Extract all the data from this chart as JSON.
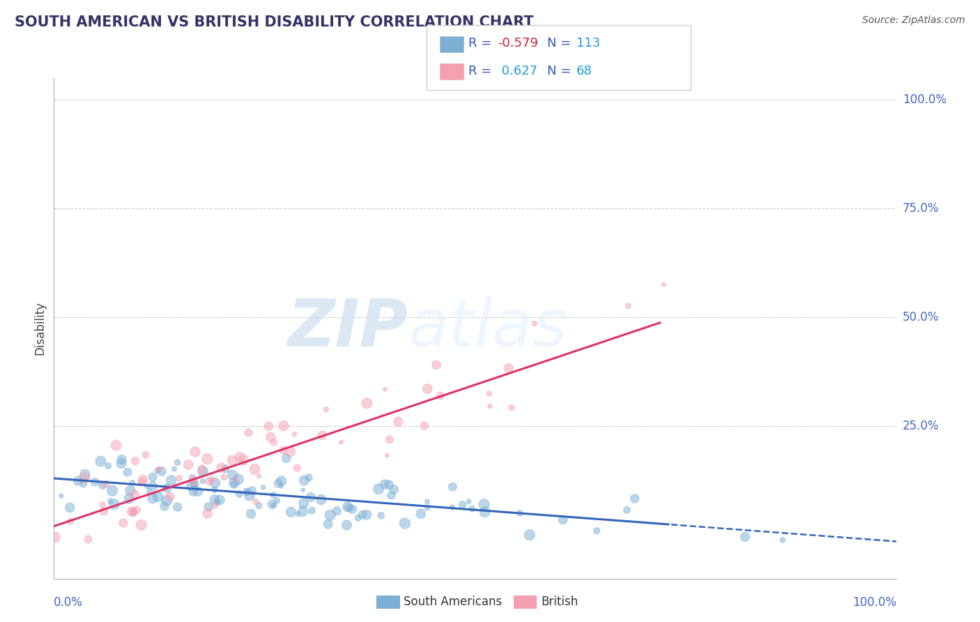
{
  "title": "SOUTH AMERICAN VS BRITISH DISABILITY CORRELATION CHART",
  "source": "Source: ZipAtlas.com",
  "ylabel": "Disability",
  "blue_R": -0.579,
  "blue_N": 113,
  "pink_R": 0.627,
  "pink_N": 68,
  "blue_color": "#7BAFD4",
  "pink_color": "#F4A0B0",
  "blue_line_color": "#3366BB",
  "pink_line_color": "#DD3366",
  "title_color": "#333366",
  "axis_label_color": "#4466BB",
  "legend_r_color": "#3355BB",
  "legend_n_color": "#2299DD",
  "watermark_color": "#CCDDEE",
  "background_color": "#FFFFFF",
  "blue_intercept": 0.13,
  "blue_slope": -0.145,
  "pink_intercept": 0.02,
  "pink_slope": 0.65,
  "xlim": [
    0.0,
    1.0
  ],
  "ylim": [
    -0.1,
    1.05
  ],
  "marker_size_min": 15,
  "marker_size_max": 120
}
